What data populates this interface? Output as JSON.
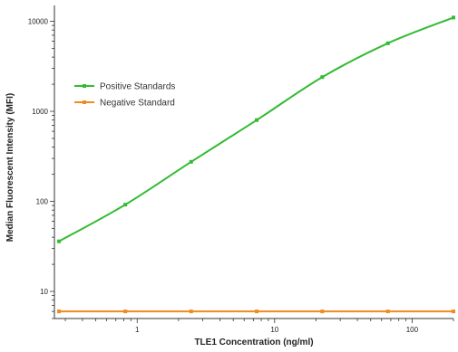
{
  "chart_data": {
    "type": "line",
    "title": "",
    "xlabel": "TLE1 Concentration (ng/ml)",
    "ylabel": "Median Fluorescent Intensity (MFI)",
    "x_scale": "log",
    "y_scale": "log",
    "xlim": [
      0.25,
      200
    ],
    "ylim": [
      5,
      15000
    ],
    "x_ticks": [
      1,
      10,
      100
    ],
    "x_tick_labels": [
      "1",
      "10",
      "100"
    ],
    "y_ticks": [
      10,
      100,
      1000,
      10000
    ],
    "y_tick_labels": [
      "10",
      "100",
      "1000",
      "10000"
    ],
    "grid": false,
    "legend_position": "top-left",
    "series": [
      {
        "name": "Positive Standards",
        "color": "#33bb33",
        "x": [
          0.27,
          0.82,
          2.47,
          7.41,
          22.2,
          66.7,
          200
        ],
        "y": [
          36,
          92,
          275,
          800,
          2400,
          5700,
          11000
        ]
      },
      {
        "name": "Negative Standard",
        "color": "#f08a1e",
        "x": [
          0.27,
          0.82,
          2.47,
          7.41,
          22.2,
          66.7,
          200
        ],
        "y": [
          6,
          6,
          6,
          6,
          6,
          6,
          6
        ]
      }
    ]
  }
}
